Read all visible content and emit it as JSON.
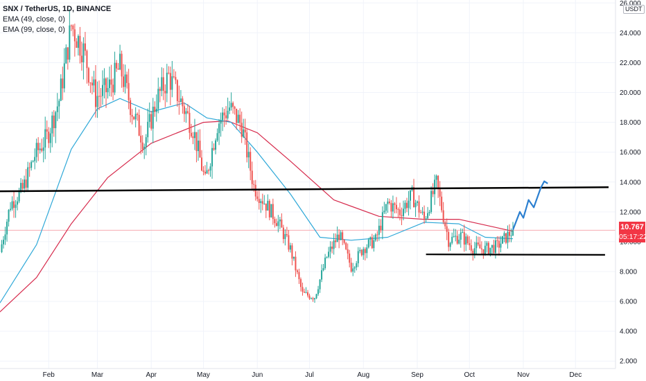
{
  "legend": {
    "title": "SNX / TetherUS, 1D, BINANCE",
    "ema1": "EMA (49, close, 0)",
    "ema2": "EMA (99, close, 0)"
  },
  "axis_unit": "USDT",
  "last_price": "10.767",
  "countdown": "05:17:22",
  "colors": {
    "up": "#26a69a",
    "down": "#ef5350",
    "ema49": "#2ea8d8",
    "ema99": "#d6294b",
    "lines": "#000000",
    "projection": "#2b7fd0",
    "price_tag": "#f23645"
  },
  "chart_data": {
    "type": "candlestick",
    "x_ticks": [
      "Feb",
      "Mar",
      "Apr",
      "May",
      "Jun",
      "Jul",
      "Aug",
      "Sep",
      "Oct",
      "Nov",
      "Dec"
    ],
    "y_ticks": [
      "2.000",
      "4.000",
      "6.000",
      "8.000",
      "10.000",
      "12.000",
      "14.000",
      "16.000",
      "18.000",
      "20.000",
      "22.000",
      "24.000",
      "26.000"
    ],
    "ylim": [
      1.5,
      26.2
    ],
    "x_domain": [
      "2021-01-04",
      "2021-12-24"
    ],
    "close_path": [
      [
        "2021-01-04",
        9.3
      ],
      [
        "2021-01-10",
        12.5
      ],
      [
        "2021-01-17",
        13.5
      ],
      [
        "2021-01-24",
        15.8
      ],
      [
        "2021-01-31",
        17.0
      ],
      [
        "2021-02-07",
        19.5
      ],
      [
        "2021-02-14",
        24.5
      ],
      [
        "2021-02-21",
        22.8
      ],
      [
        "2021-02-28",
        19.7
      ],
      [
        "2021-03-07",
        20.2
      ],
      [
        "2021-03-14",
        21.7
      ],
      [
        "2021-03-21",
        18.8
      ],
      [
        "2021-03-28",
        16.6
      ],
      [
        "2021-04-04",
        19.5
      ],
      [
        "2021-04-11",
        21.1
      ],
      [
        "2021-04-18",
        19.4
      ],
      [
        "2021-04-25",
        17.6
      ],
      [
        "2021-05-02",
        14.0
      ],
      [
        "2021-05-09",
        17.9
      ],
      [
        "2021-05-16",
        19.0
      ],
      [
        "2021-05-23",
        17.8
      ],
      [
        "2021-05-30",
        13.7
      ],
      [
        "2021-06-06",
        12.5
      ],
      [
        "2021-06-13",
        11.3
      ],
      [
        "2021-06-20",
        9.5
      ],
      [
        "2021-06-27",
        6.5
      ],
      [
        "2021-07-04",
        6.3
      ],
      [
        "2021-07-11",
        9.0
      ],
      [
        "2021-07-18",
        10.5
      ],
      [
        "2021-07-25",
        8.3
      ],
      [
        "2021-08-01",
        9.6
      ],
      [
        "2021-08-08",
        10.1
      ],
      [
        "2021-08-15",
        12.6
      ],
      [
        "2021-08-22",
        12.0
      ],
      [
        "2021-08-29",
        13.1
      ],
      [
        "2021-09-05",
        11.5
      ],
      [
        "2021-09-12",
        13.9
      ],
      [
        "2021-09-19",
        10.1
      ],
      [
        "2021-09-26",
        10.4
      ],
      [
        "2021-10-03",
        9.6
      ],
      [
        "2021-10-10",
        9.5
      ],
      [
        "2021-10-17",
        9.7
      ],
      [
        "2021-10-26",
        10.77
      ]
    ],
    "ema49": [
      [
        "2021-01-04",
        5.9
      ],
      [
        "2021-01-25",
        9.8
      ],
      [
        "2021-02-14",
        16.2
      ],
      [
        "2021-03-01",
        18.9
      ],
      [
        "2021-03-14",
        19.6
      ],
      [
        "2021-04-01",
        18.7
      ],
      [
        "2021-04-20",
        19.3
      ],
      [
        "2021-05-03",
        18.3
      ],
      [
        "2021-05-17",
        18.0
      ],
      [
        "2021-06-01",
        16.0
      ],
      [
        "2021-06-20",
        13.2
      ],
      [
        "2021-07-07",
        10.3
      ],
      [
        "2021-07-25",
        10.1
      ],
      [
        "2021-08-15",
        10.3
      ],
      [
        "2021-09-05",
        11.3
      ],
      [
        "2021-09-25",
        11.2
      ],
      [
        "2021-10-10",
        10.3
      ],
      [
        "2021-10-26",
        10.2
      ]
    ],
    "ema99": [
      [
        "2021-01-04",
        5.3
      ],
      [
        "2021-01-25",
        7.6
      ],
      [
        "2021-02-14",
        11.2
      ],
      [
        "2021-03-07",
        14.3
      ],
      [
        "2021-04-01",
        16.6
      ],
      [
        "2021-05-01",
        18.0
      ],
      [
        "2021-05-15",
        18.1
      ],
      [
        "2021-06-01",
        17.3
      ],
      [
        "2021-06-20",
        15.4
      ],
      [
        "2021-07-15",
        12.8
      ],
      [
        "2021-08-10",
        11.7
      ],
      [
        "2021-09-05",
        11.5
      ],
      [
        "2021-09-25",
        11.5
      ],
      [
        "2021-10-26",
        10.7
      ]
    ],
    "resistance": [
      [
        "2021-01-04",
        13.38
      ],
      [
        "2021-12-20",
        13.65
      ]
    ],
    "support": [
      [
        "2021-09-06",
        9.15
      ],
      [
        "2021-12-18",
        9.12
      ]
    ],
    "projection": [
      [
        "2021-10-26",
        10.8
      ],
      [
        "2021-10-30",
        12.0
      ],
      [
        "2021-11-01",
        11.6
      ],
      [
        "2021-11-04",
        12.8
      ],
      [
        "2021-11-07",
        12.3
      ],
      [
        "2021-11-11",
        13.6
      ],
      [
        "2021-11-13",
        14.05
      ],
      [
        "2021-11-15",
        13.9
      ]
    ]
  }
}
